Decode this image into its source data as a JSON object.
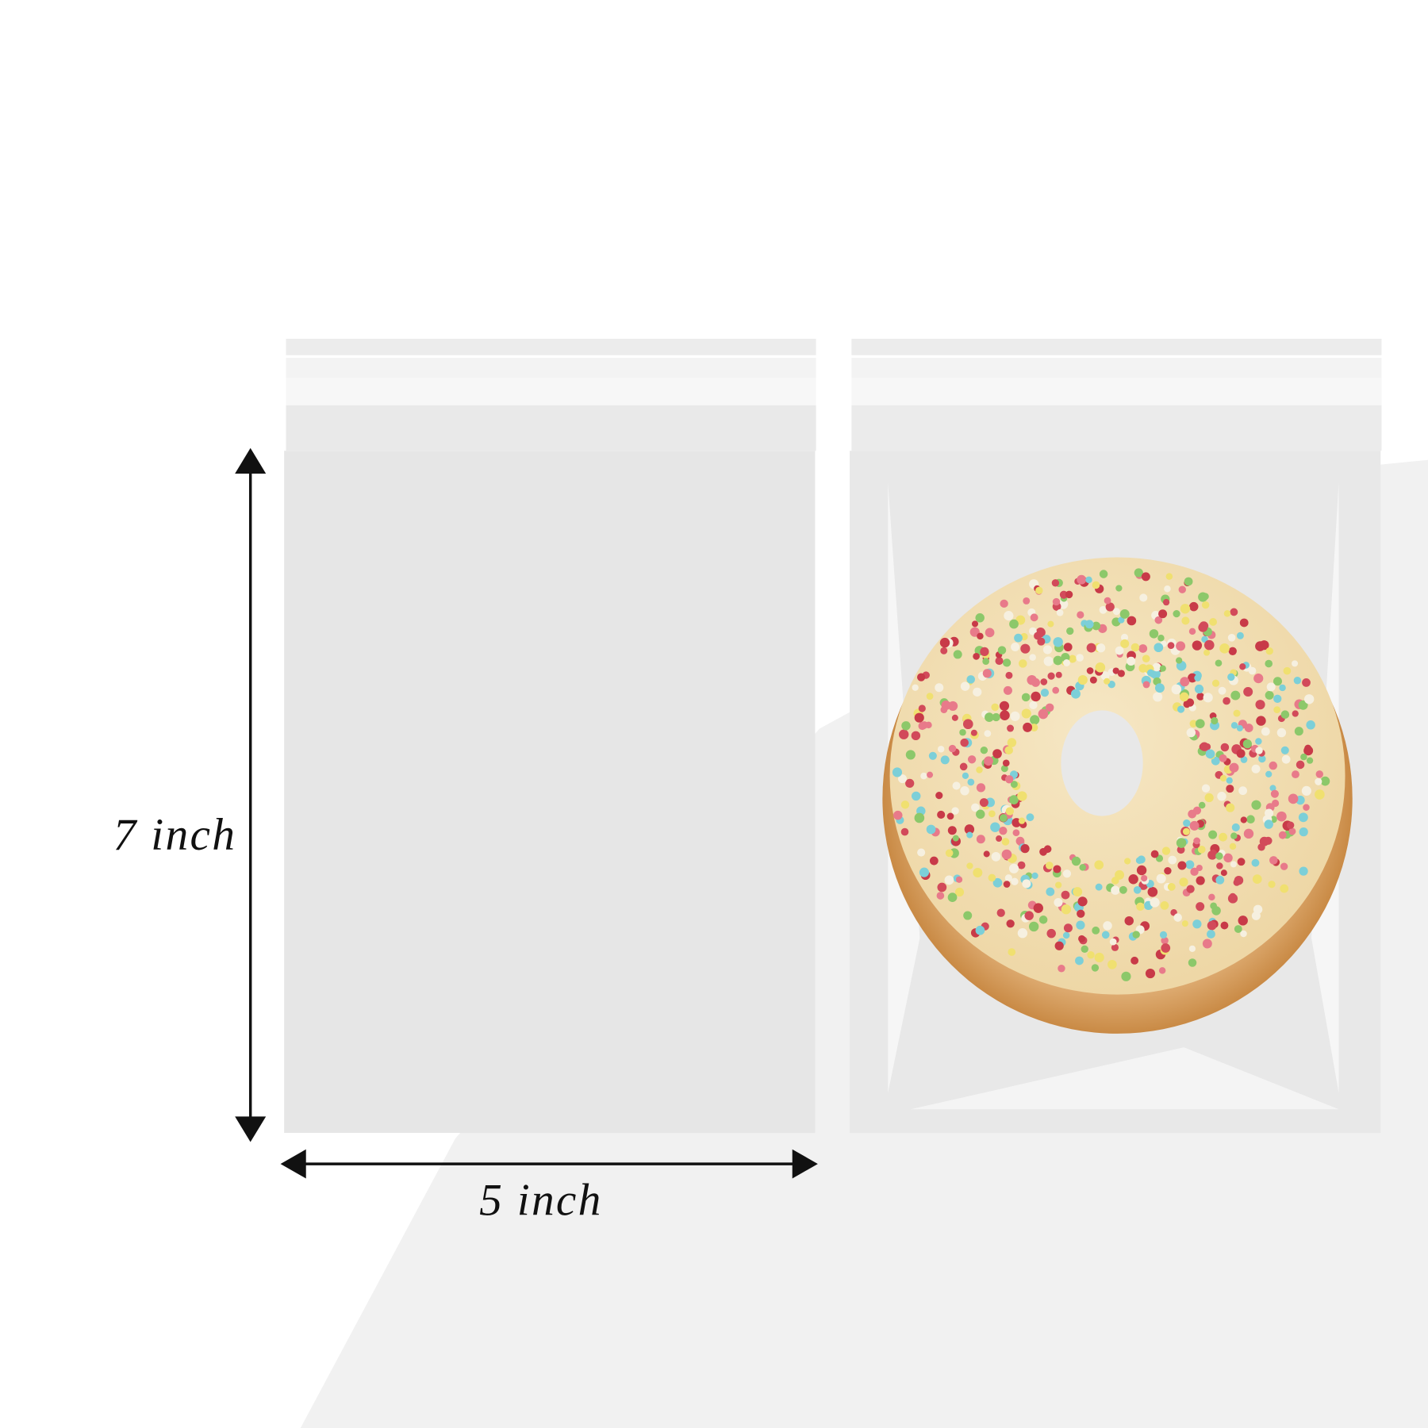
{
  "labels": {
    "height": "7 inch",
    "width": "5 inch"
  }
}
